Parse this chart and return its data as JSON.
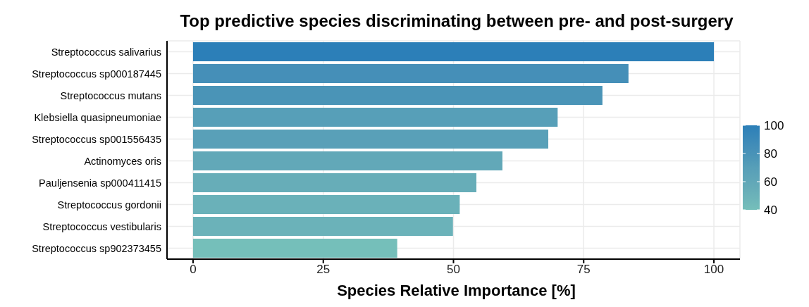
{
  "chart_data": {
    "type": "bar",
    "orientation": "horizontal",
    "title": "Top predictive species discriminating between pre- and post-surgery",
    "xlabel": "Species Relative Importance [%]",
    "categories": [
      "Streptococcus salivarius",
      "Streptococcus sp000187445",
      "Streptococcus mutans",
      "Klebsiella quasipneumoniae",
      "Streptococcus sp001556435",
      "Actinomyces oris",
      "Pauljensenia sp000411415",
      "Streptococcus gordonii",
      "Streptococcus vestibularis",
      "Streptococcus sp902373455"
    ],
    "values": [
      100,
      83.6,
      78.6,
      70.0,
      68.2,
      59.4,
      54.4,
      51.2,
      49.9,
      39.2
    ],
    "colors": [
      "#2c7fb8",
      "#458fb8",
      "#4a94b7",
      "#579fb8",
      "#59a0b8",
      "#62a8b8",
      "#67adb8",
      "#6ab1b9",
      "#6bb2b9",
      "#75bfba"
    ],
    "xlim": [
      -5,
      105
    ],
    "xticks": [
      0,
      25,
      50,
      75,
      100
    ],
    "grid": true,
    "clim": [
      40,
      100
    ],
    "cticks": [
      40,
      60,
      80,
      100
    ]
  }
}
